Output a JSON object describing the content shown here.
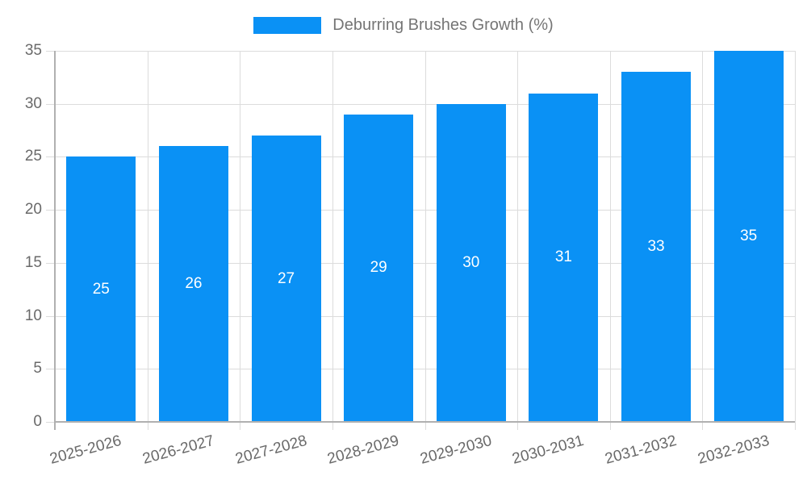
{
  "chart_data": {
    "type": "bar",
    "title": "Deburring Brushes Growth (%)",
    "legend_position": "top",
    "categories": [
      "2025-2026",
      "2026-2027",
      "2027-2028",
      "2028-2029",
      "2029-2030",
      "2030-2031",
      "2031-2032",
      "2032-2033"
    ],
    "values": [
      25,
      26,
      27,
      29,
      30,
      31,
      33,
      35
    ],
    "xlabel": "",
    "ylabel": "",
    "ylim": [
      0,
      35
    ],
    "ytick_step": 5,
    "yticks": [
      "0",
      "5",
      "10",
      "15",
      "20",
      "25",
      "30",
      "35"
    ],
    "grid": true,
    "bar_labels_inside": true,
    "colors": {
      "bar": "#0a91f5",
      "bar_label": "#ffffff",
      "axis_text": "#696969",
      "legend_text": "#757575",
      "gridline": "#dcdcdc",
      "axis_line": "#b0b0b0",
      "background": "#ffffff"
    }
  }
}
